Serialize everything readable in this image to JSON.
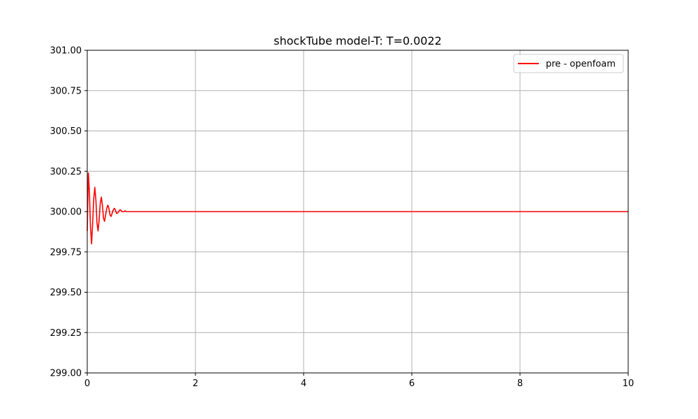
{
  "chart_data": {
    "type": "line",
    "title": "shockTube model-T: T=0.0022",
    "xlabel": "",
    "ylabel": "",
    "xlim": [
      0,
      10
    ],
    "ylim": [
      299.0,
      301.0
    ],
    "x_ticks": [
      0,
      2,
      4,
      6,
      8,
      10
    ],
    "x_tick_labels": [
      "0",
      "2",
      "4",
      "6",
      "8",
      "10"
    ],
    "y_ticks": [
      299.0,
      299.25,
      299.5,
      299.75,
      300.0,
      300.25,
      300.5,
      300.75,
      301.0
    ],
    "y_tick_labels": [
      "299.00",
      "299.25",
      "299.50",
      "299.75",
      "300.00",
      "300.25",
      "300.50",
      "300.75",
      "301.00"
    ],
    "grid": true,
    "legend_position": "top-right",
    "series": [
      {
        "name": "pre - openfoam",
        "color": "#ff0000",
        "x": [
          0,
          0.02,
          0.04,
          0.06,
          0.08,
          0.1,
          0.12,
          0.14,
          0.16,
          0.18,
          0.2,
          0.22,
          0.24,
          0.26,
          0.28,
          0.3,
          0.32,
          0.34,
          0.36,
          0.38,
          0.4,
          0.42,
          0.44,
          0.46,
          0.48,
          0.5,
          0.52,
          0.54,
          0.56,
          0.58,
          0.6,
          0.62,
          0.64,
          0.66,
          0.68,
          0.7,
          0.72,
          0.74,
          0.76,
          0.78,
          0.8,
          0.85,
          0.9,
          1.0,
          2,
          4,
          6,
          8,
          10
        ],
        "y": [
          299.88,
          300.24,
          300.12,
          299.9,
          299.8,
          299.93,
          300.08,
          300.15,
          300.07,
          299.93,
          299.88,
          299.95,
          300.05,
          300.09,
          300.04,
          299.96,
          299.94,
          299.98,
          300.02,
          300.04,
          300.02,
          299.98,
          299.97,
          299.99,
          300.01,
          300.02,
          300.01,
          299.99,
          299.99,
          300.0,
          300.01,
          300.01,
          300.0,
          300.0,
          300.0,
          300.005,
          300.0,
          300.0,
          300.0,
          300.0,
          300.0,
          300.0,
          300.0,
          300.0,
          300.0,
          300.0,
          300.0,
          300.0,
          300.0
        ]
      }
    ]
  }
}
